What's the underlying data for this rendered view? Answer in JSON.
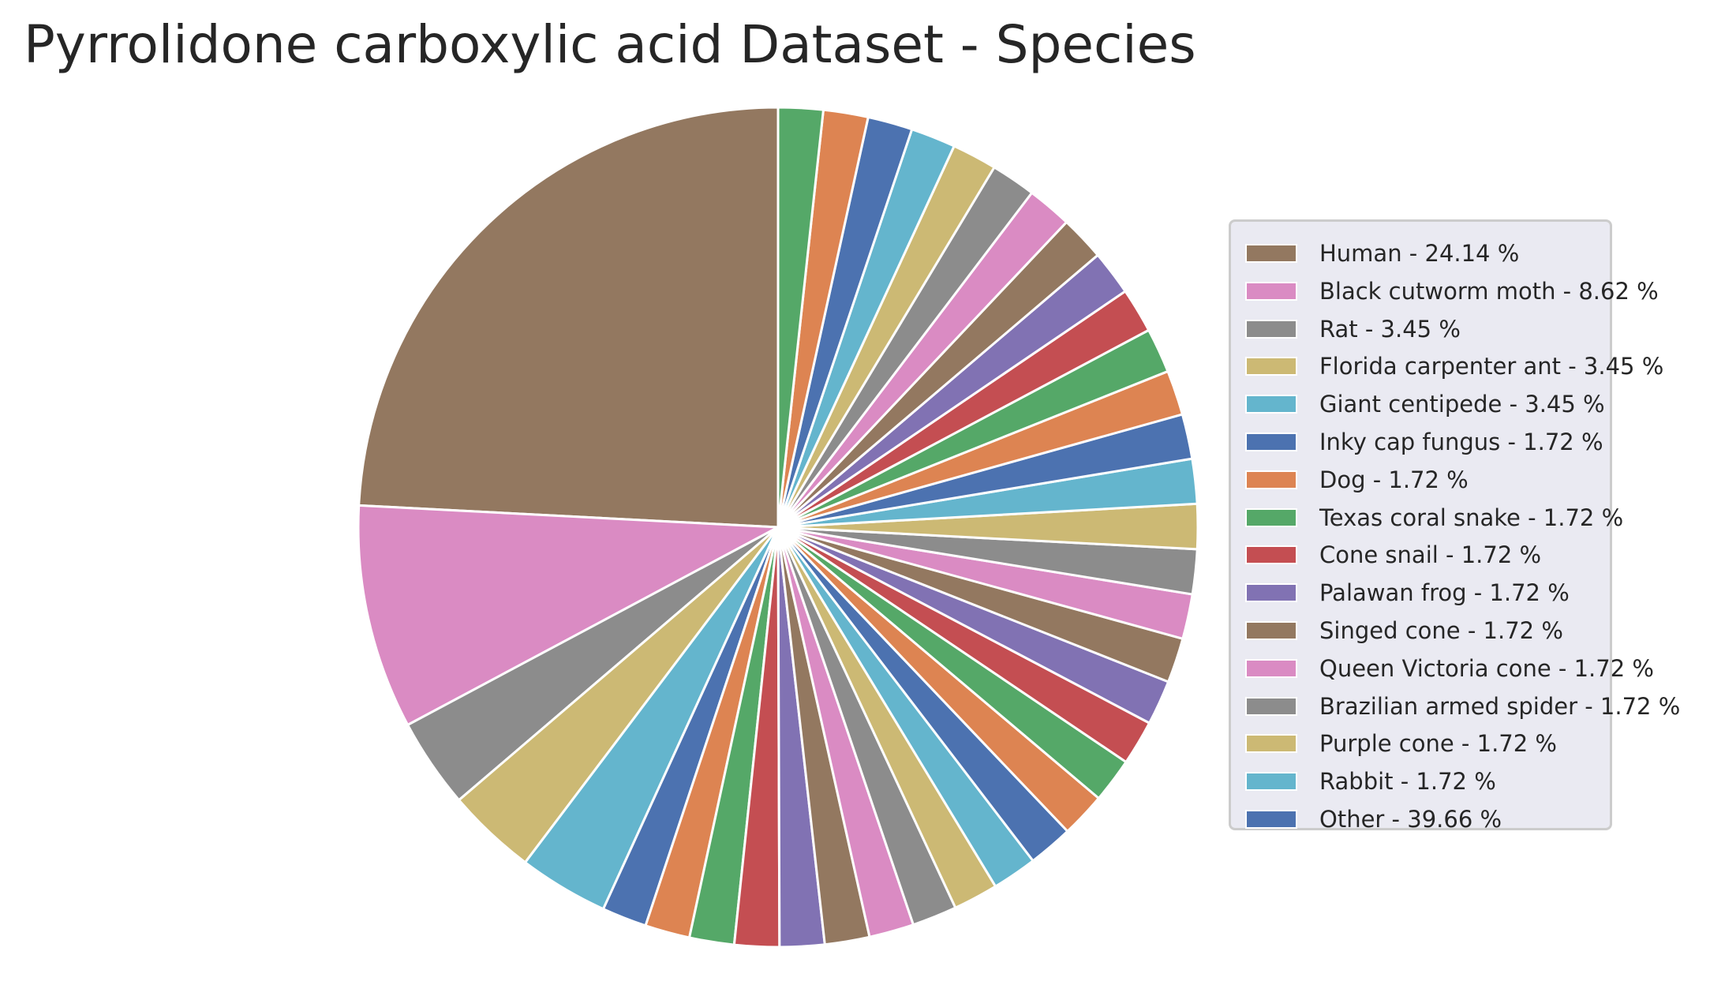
{
  "chart_data": {
    "type": "pie",
    "title": "Pyrrolidone carboxylic acid Dataset - Species",
    "legend_position": "right",
    "start_angle_deg": 90,
    "direction": "counterclockwise",
    "edge_color": "#ffffff",
    "slices": [
      {
        "value": 24.14,
        "color": "#937860"
      },
      {
        "value": 8.62,
        "color": "#da8bc3"
      },
      {
        "value": 3.45,
        "color": "#8c8c8c"
      },
      {
        "value": 3.45,
        "color": "#ccb974"
      },
      {
        "value": 3.45,
        "color": "#64b5cd"
      },
      {
        "value": 1.72,
        "color": "#4c72b0"
      },
      {
        "value": 1.72,
        "color": "#dd8452"
      },
      {
        "value": 1.72,
        "color": "#55a868"
      },
      {
        "value": 1.72,
        "color": "#c44e52"
      },
      {
        "value": 1.72,
        "color": "#8172b3"
      },
      {
        "value": 1.72,
        "color": "#937860"
      },
      {
        "value": 1.72,
        "color": "#da8bc3"
      },
      {
        "value": 1.72,
        "color": "#8c8c8c"
      },
      {
        "value": 1.72,
        "color": "#ccb974"
      },
      {
        "value": 1.72,
        "color": "#64b5cd"
      },
      {
        "value": 1.72,
        "color": "#4c72b0"
      },
      {
        "value": 1.72,
        "color": "#dd8452"
      },
      {
        "value": 1.72,
        "color": "#55a868"
      },
      {
        "value": 1.72,
        "color": "#c44e52"
      },
      {
        "value": 1.72,
        "color": "#8172b3"
      },
      {
        "value": 1.72,
        "color": "#937860"
      },
      {
        "value": 1.72,
        "color": "#da8bc3"
      },
      {
        "value": 1.72,
        "color": "#8c8c8c"
      },
      {
        "value": 1.72,
        "color": "#ccb974"
      },
      {
        "value": 1.72,
        "color": "#64b5cd"
      },
      {
        "value": 1.72,
        "color": "#4c72b0"
      },
      {
        "value": 1.72,
        "color": "#dd8452"
      },
      {
        "value": 1.72,
        "color": "#55a868"
      },
      {
        "value": 1.72,
        "color": "#c44e52"
      },
      {
        "value": 1.72,
        "color": "#8172b3"
      },
      {
        "value": 1.72,
        "color": "#937860"
      },
      {
        "value": 1.72,
        "color": "#da8bc3"
      },
      {
        "value": 1.72,
        "color": "#8c8c8c"
      },
      {
        "value": 1.72,
        "color": "#ccb974"
      },
      {
        "value": 1.72,
        "color": "#64b5cd"
      },
      {
        "value": 1.72,
        "color": "#4c72b0"
      },
      {
        "value": 1.72,
        "color": "#dd8452"
      },
      {
        "value": 1.72,
        "color": "#55a868"
      }
    ],
    "legend": [
      {
        "label": "Human - 24.14 %",
        "color": "#937860"
      },
      {
        "label": "Black cutworm moth - 8.62 %",
        "color": "#da8bc3"
      },
      {
        "label": "Rat - 3.45 %",
        "color": "#8c8c8c"
      },
      {
        "label": "Florida carpenter ant - 3.45 %",
        "color": "#ccb974"
      },
      {
        "label": "Giant centipede - 3.45 %",
        "color": "#64b5cd"
      },
      {
        "label": "Inky cap fungus - 1.72 %",
        "color": "#4c72b0"
      },
      {
        "label": "Dog - 1.72 %",
        "color": "#dd8452"
      },
      {
        "label": "Texas coral snake - 1.72 %",
        "color": "#55a868"
      },
      {
        "label": "Cone snail - 1.72 %",
        "color": "#c44e52"
      },
      {
        "label": "Palawan frog - 1.72 %",
        "color": "#8172b3"
      },
      {
        "label": "Singed cone - 1.72 %",
        "color": "#937860"
      },
      {
        "label": "Queen Victoria cone - 1.72 %",
        "color": "#da8bc3"
      },
      {
        "label": "Brazilian armed spider - 1.72 %",
        "color": "#8c8c8c"
      },
      {
        "label": "Purple cone - 1.72 %",
        "color": "#ccb974"
      },
      {
        "label": "Rabbit - 1.72 %",
        "color": "#64b5cd"
      },
      {
        "label": "Other - 39.66 %",
        "color": "#4c72b0"
      }
    ]
  }
}
